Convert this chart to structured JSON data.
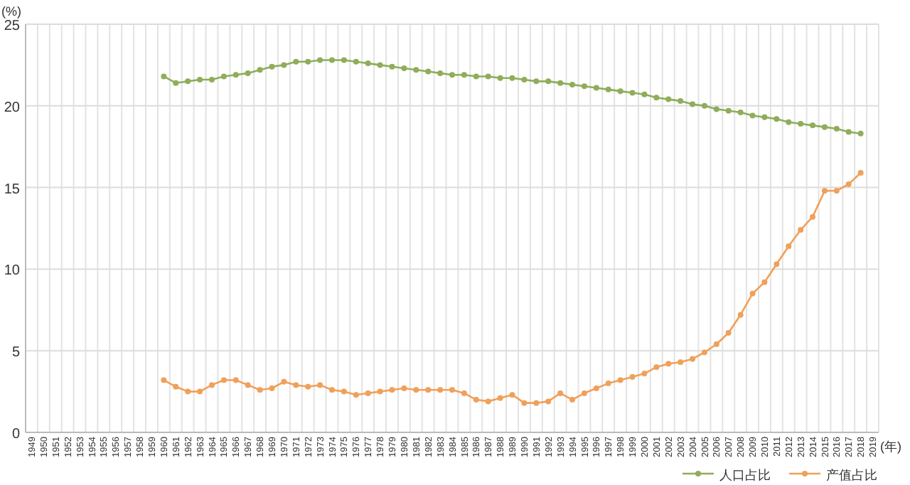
{
  "chart_data": {
    "type": "line",
    "ylabel": "(%)",
    "xlabel": "(年)",
    "categories": [
      "1949",
      "1950",
      "1951",
      "1952",
      "1953",
      "1954",
      "1955",
      "1956",
      "1957",
      "1958",
      "1959",
      "1960",
      "1961",
      "1962",
      "1963",
      "1964",
      "1965",
      "1966",
      "1967",
      "1968",
      "1969",
      "1970",
      "1971",
      "1972",
      "1973",
      "1974",
      "1975",
      "1976",
      "1977",
      "1978",
      "1979",
      "1980",
      "1981",
      "1982",
      "1983",
      "1984",
      "1985",
      "1986",
      "1987",
      "1988",
      "1989",
      "1990",
      "1991",
      "1992",
      "1993",
      "1994",
      "1995",
      "1996",
      "1997",
      "1998",
      "1999",
      "2000",
      "2001",
      "2002",
      "2003",
      "2004",
      "2005",
      "2006",
      "2007",
      "2008",
      "2009",
      "2010",
      "2011",
      "2012",
      "2013",
      "2014",
      "2015",
      "2016",
      "2017",
      "2018",
      "2019"
    ],
    "series": [
      {
        "name": "人口占比",
        "color": "#8fad5a",
        "values": [
          null,
          null,
          null,
          null,
          null,
          null,
          null,
          null,
          null,
          null,
          null,
          21.8,
          21.4,
          21.5,
          21.6,
          21.6,
          21.8,
          21.9,
          22.0,
          22.2,
          22.4,
          22.5,
          22.7,
          22.7,
          22.8,
          22.8,
          22.8,
          22.7,
          22.6,
          22.5,
          22.4,
          22.3,
          22.2,
          22.1,
          22.0,
          21.9,
          21.9,
          21.8,
          21.8,
          21.7,
          21.7,
          21.6,
          21.5,
          21.5,
          21.4,
          21.3,
          21.2,
          21.1,
          21.0,
          20.9,
          20.8,
          20.7,
          20.5,
          20.4,
          20.3,
          20.1,
          20.0,
          19.8,
          19.7,
          19.6,
          19.4,
          19.3,
          19.2,
          19.0,
          18.9,
          18.8,
          18.7,
          18.6,
          18.4,
          18.3,
          null
        ]
      },
      {
        "name": "产值占比",
        "color": "#f0a05a",
        "values": [
          null,
          null,
          null,
          null,
          null,
          null,
          null,
          null,
          null,
          null,
          null,
          3.2,
          2.8,
          2.5,
          2.5,
          2.9,
          3.2,
          3.2,
          2.9,
          2.6,
          2.7,
          3.1,
          2.9,
          2.8,
          2.9,
          2.6,
          2.5,
          2.3,
          2.4,
          2.5,
          2.6,
          2.7,
          2.6,
          2.6,
          2.6,
          2.6,
          2.4,
          2.0,
          1.9,
          2.1,
          2.3,
          1.8,
          1.8,
          1.9,
          2.4,
          2.0,
          2.4,
          2.7,
          3.0,
          3.2,
          3.4,
          3.6,
          4.0,
          4.2,
          4.3,
          4.5,
          4.9,
          5.4,
          6.1,
          7.2,
          8.5,
          9.2,
          10.3,
          11.4,
          12.4,
          13.2,
          14.8,
          14.8,
          15.2,
          15.9,
          null
        ]
      }
    ],
    "ylim": [
      0,
      25
    ],
    "yticks": [
      0,
      5,
      10,
      15,
      20,
      25
    ],
    "grid": true,
    "legend": "bottom right",
    "marker": "circle",
    "line_style": "solid"
  }
}
